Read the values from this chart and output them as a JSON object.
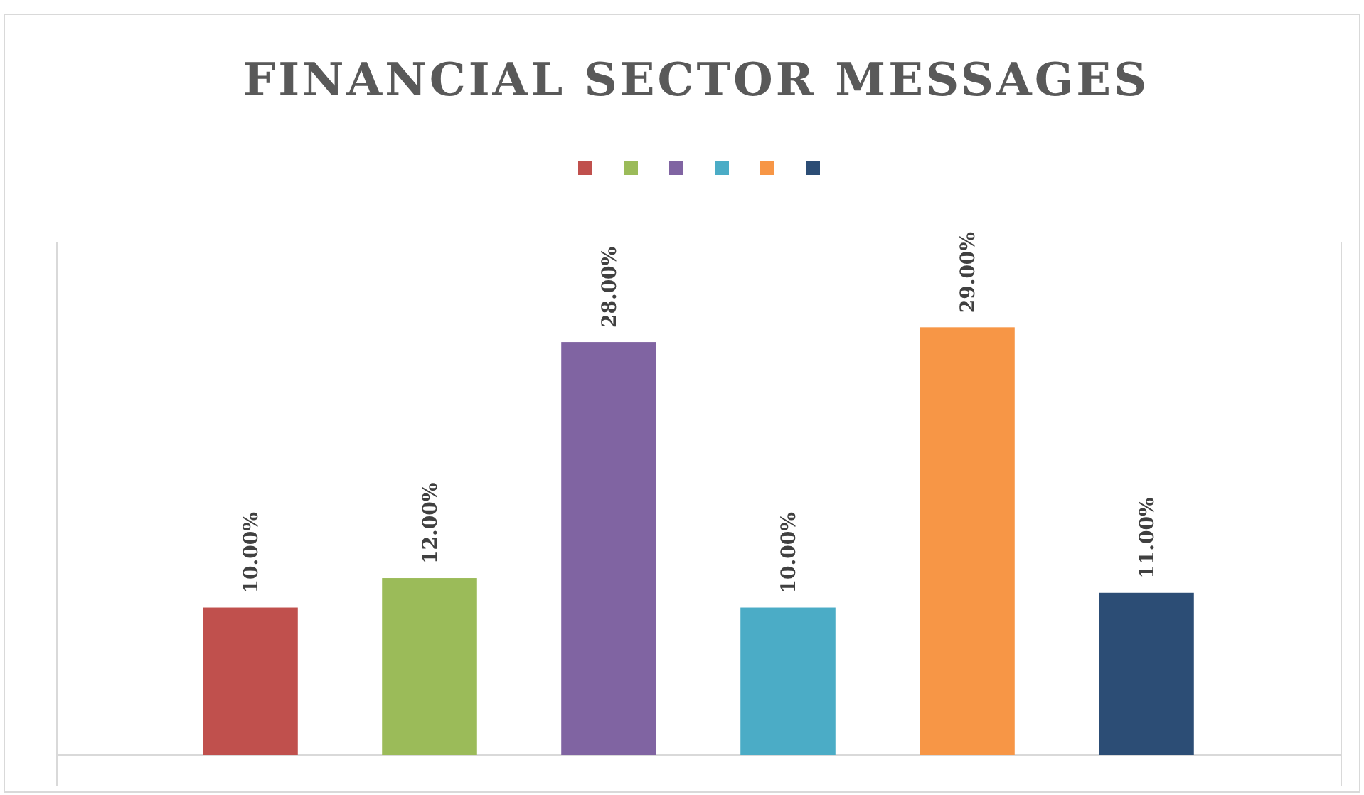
{
  "chart_data": {
    "type": "bar",
    "title": "FINANCIAL SECTOR MESSAGES",
    "categories": [
      null,
      null,
      null,
      null,
      null,
      null
    ],
    "values": [
      10,
      12,
      28,
      10,
      29,
      11
    ],
    "colors": [
      "#c0504d",
      "#9bbb59",
      "#8064a2",
      "#4bacc6",
      "#f79646",
      "#2c4d75"
    ],
    "value_labels": [
      "10.00%",
      "12.00%",
      "28.00%",
      "10.00%",
      "29.00%",
      "11.00%"
    ]
  }
}
